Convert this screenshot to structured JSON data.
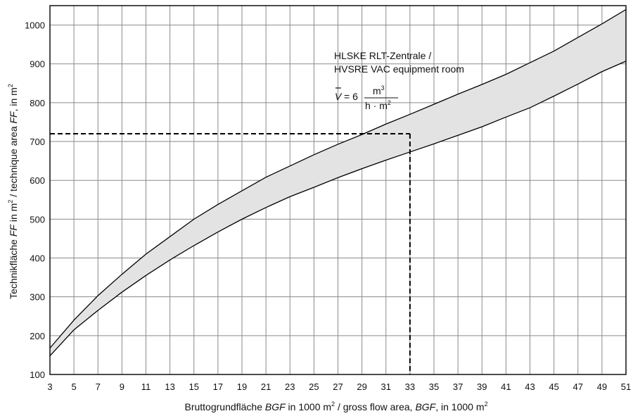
{
  "chart_data": {
    "type": "area",
    "x": [
      3,
      5,
      7,
      9,
      11,
      13,
      15,
      17,
      19,
      21,
      23,
      25,
      27,
      29,
      31,
      33,
      35,
      37,
      39,
      41,
      43,
      45,
      47,
      49,
      51
    ],
    "series": [
      {
        "values": [
          168,
          240,
          303,
          358,
          410,
          455,
          500,
          538,
          573,
          608,
          637,
          666,
          693,
          718,
          745,
          770,
          796,
          822,
          847,
          873,
          903,
          933,
          968,
          1003,
          1040
        ]
      },
      {
        "values": [
          148,
          215,
          265,
          312,
          355,
          395,
          432,
          467,
          500,
          530,
          558,
          582,
          607,
          630,
          652,
          673,
          694,
          716,
          738,
          763,
          787,
          817,
          848,
          880,
          907
        ]
      }
    ],
    "xlim": [
      3,
      51
    ],
    "ylim": [
      100,
      1050
    ],
    "xticks": [
      3,
      5,
      7,
      9,
      11,
      13,
      15,
      17,
      19,
      21,
      23,
      25,
      27,
      29,
      31,
      33,
      35,
      37,
      39,
      41,
      43,
      45,
      47,
      49,
      51
    ],
    "yticks": [
      100,
      200,
      300,
      400,
      500,
      600,
      700,
      800,
      900,
      1000
    ],
    "grid": true,
    "band_fill": "#e3e3e3",
    "reference": {
      "x": 33,
      "y": 720
    },
    "xlabel": {
      "part1": "Bruttogrundfläche ",
      "part2": "BGF",
      "part3": " in 1000 m",
      "part4": "2",
      "part5": " / gross flow area, ",
      "part6": "BGF",
      "part7": ", in 1000 m",
      "part8": "2"
    },
    "ylabel": {
      "part1": "Technikfläche ",
      "part2": "FF",
      "part3": " in m",
      "part4": "2",
      "part5": " / technique area ",
      "part6": "FF",
      "part7": ", in m",
      "part8": "2"
    },
    "annotation": {
      "line1": "HLSKE RLT-Zentrale /",
      "line2": "HVSRE VAC equipment room",
      "formula_var": "V",
      "formula_eq": "= 6",
      "num": "m",
      "num_sup": "3",
      "den": "h · m",
      "den_sup": "2"
    }
  }
}
